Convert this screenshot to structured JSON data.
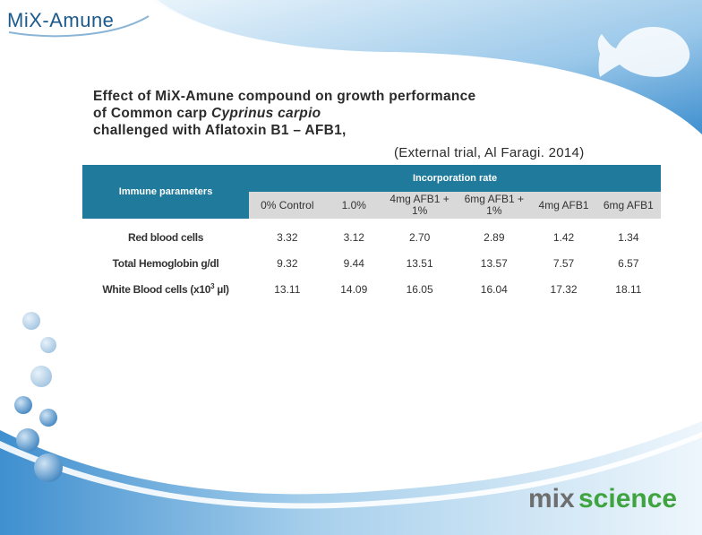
{
  "brand": {
    "top_logo": "MiX-Amune",
    "bottom_logo_a": "mix",
    "bottom_logo_b": "science"
  },
  "title": {
    "line1": "Effect of MiX-Amune compound on growth performance",
    "line2_prefix": "of Common carp ",
    "line2_italic": "Cyprinus carpio",
    "line3": "challenged with Aflatoxin B1 – AFB1,"
  },
  "subtitle": "(External trial, Al Faragi. 2014)",
  "table": {
    "param_header": "Immune parameters",
    "group_header": "Incorporation rate",
    "columns": [
      "0% Control",
      "1.0%",
      "4mg AFB1 + 1%",
      "6mg AFB1 + 1%",
      "4mg AFB1",
      "6mg AFB1"
    ],
    "rows": [
      {
        "label": "Red blood cells",
        "values": [
          "3.32",
          "3.12",
          "2.70",
          "2.89",
          "1.42",
          "1.34"
        ]
      },
      {
        "label": "Total Hemoglobin g/dl",
        "values": [
          "9.32",
          "9.44",
          "13.51",
          "13.57",
          "7.57",
          "6.57"
        ]
      },
      {
        "label_prefix": "White Blood cells (x10",
        "label_sup": "3",
        "label_suffix": " µl)",
        "values": [
          "13.11",
          "14.09",
          "16.05",
          "16.04",
          "17.32",
          "18.11"
        ]
      }
    ]
  },
  "colors": {
    "header_blue": "#1f7a9b",
    "subheader_gray": "#d9d9d9",
    "brand_green": "#3fa43f",
    "swoosh_blue": "#5fa3d6"
  },
  "icons": {
    "fish": "fish-silhouette-icon"
  }
}
